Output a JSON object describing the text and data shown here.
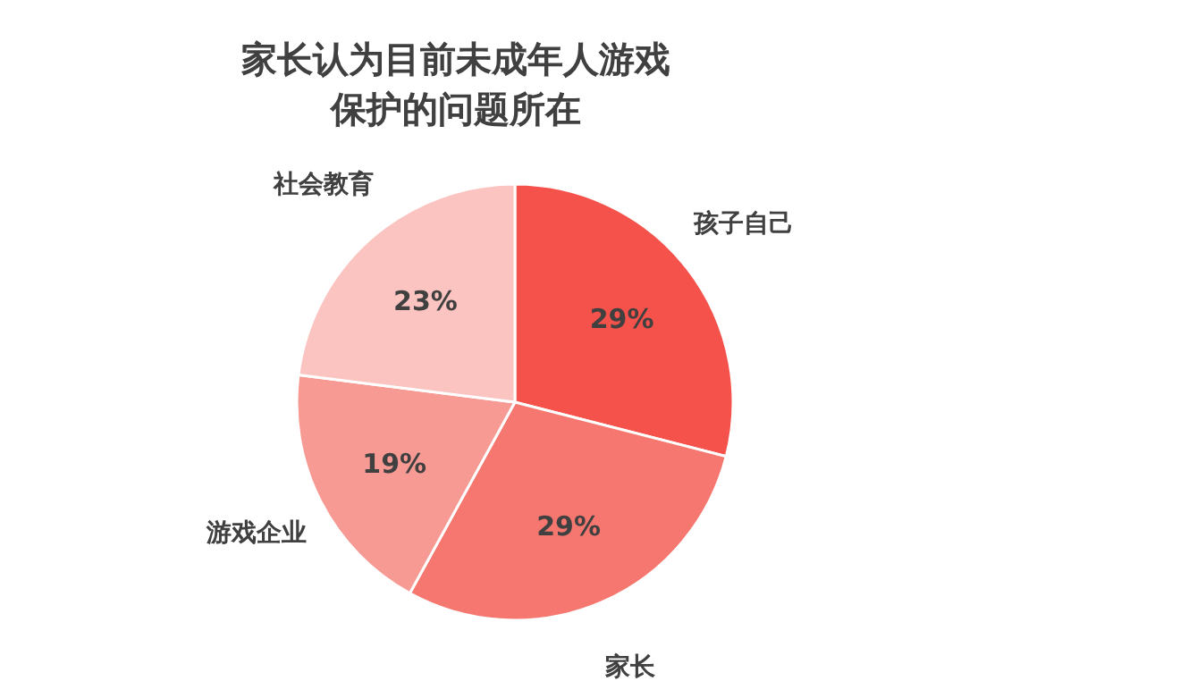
{
  "chart_data": {
    "type": "pie",
    "title": "家长认为目前未成年人游戏保护的问题所在",
    "categories": [
      "孩子自己",
      "家长",
      "游戏企业",
      "社会教育"
    ],
    "values": [
      29,
      29,
      19,
      23
    ],
    "colors": [
      "#f4524a",
      "#f6776f",
      "#f89a94",
      "#fbc4c0"
    ],
    "value_labels": [
      "29%",
      "29%",
      "19%",
      "23%"
    ]
  }
}
